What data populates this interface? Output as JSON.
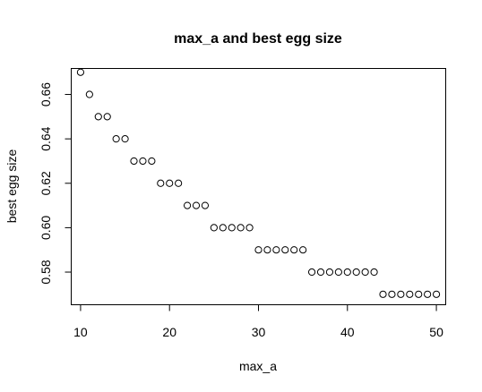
{
  "chart_data": {
    "type": "scatter",
    "title": "max_a and best egg size",
    "xlabel": "max_a",
    "ylabel": "best egg size",
    "xlim": [
      9,
      51
    ],
    "ylim": [
      0.5655,
      0.6715
    ],
    "xticks": [
      10,
      20,
      30,
      40,
      50
    ],
    "yticks": [
      0.58,
      0.6,
      0.62,
      0.64,
      0.66
    ],
    "ytick_labels": [
      "0.58",
      "0.60",
      "0.62",
      "0.64",
      "0.66"
    ],
    "xtick_labels": [
      "10",
      "20",
      "30",
      "40",
      "50"
    ],
    "marker": "open-circle",
    "x": [
      10,
      11,
      12,
      13,
      14,
      15,
      16,
      17,
      18,
      19,
      20,
      21,
      22,
      23,
      24,
      25,
      26,
      27,
      28,
      29,
      30,
      31,
      32,
      33,
      34,
      35,
      36,
      37,
      38,
      39,
      40,
      41,
      42,
      43,
      44,
      45,
      46,
      47,
      48,
      49,
      50
    ],
    "y": [
      0.67,
      0.66,
      0.65,
      0.65,
      0.64,
      0.64,
      0.63,
      0.63,
      0.63,
      0.62,
      0.62,
      0.62,
      0.61,
      0.61,
      0.61,
      0.6,
      0.6,
      0.6,
      0.6,
      0.6,
      0.59,
      0.59,
      0.59,
      0.59,
      0.59,
      0.59,
      0.58,
      0.58,
      0.58,
      0.58,
      0.58,
      0.58,
      0.58,
      0.58,
      0.57,
      0.57,
      0.57,
      0.57,
      0.57,
      0.57,
      0.57
    ]
  }
}
